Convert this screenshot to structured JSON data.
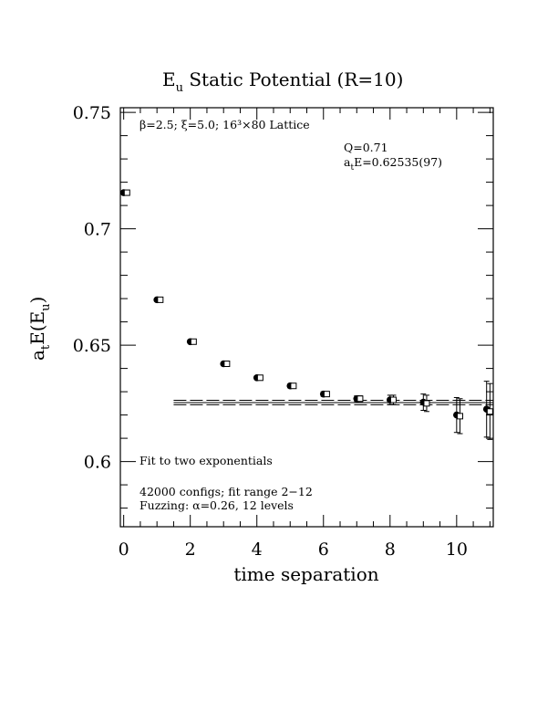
{
  "chart_data": {
    "type": "scatter",
    "title": {
      "main": "E",
      "sub": "u",
      "rest": " Static Potential (R=10)"
    },
    "xlabel": "time separation",
    "ylabel": {
      "a": "a",
      "a_sub": "t",
      "mid": "E(E",
      "mid_sub": "u",
      "end": ")"
    },
    "xlim": [
      -0.1,
      11.1
    ],
    "ylim": [
      0.572,
      0.752
    ],
    "x_ticks": [
      0,
      2,
      4,
      6,
      8,
      10
    ],
    "x_tick_labels": [
      "0",
      "2",
      "4",
      "6",
      "8",
      "10"
    ],
    "y_ticks": [
      0.6,
      0.65,
      0.7,
      0.75
    ],
    "y_tick_labels": [
      "0.6",
      "0.65",
      "0.7",
      "0.75"
    ],
    "grid": false,
    "series": [
      {
        "marker": "filled-circle",
        "points": [
          {
            "x": 0,
            "y": 0.7155,
            "err": 0.0005
          },
          {
            "x": 1,
            "y": 0.6695,
            "err": 0.0005
          },
          {
            "x": 2,
            "y": 0.6515,
            "err": 0.0006
          },
          {
            "x": 3,
            "y": 0.642,
            "err": 0.0006
          },
          {
            "x": 4,
            "y": 0.636,
            "err": 0.0007
          },
          {
            "x": 5,
            "y": 0.6325,
            "err": 0.0008
          },
          {
            "x": 6,
            "y": 0.629,
            "err": 0.001
          },
          {
            "x": 7,
            "y": 0.627,
            "err": 0.0012
          },
          {
            "x": 8,
            "y": 0.6265,
            "err": 0.002
          },
          {
            "x": 9,
            "y": 0.6255,
            "err": 0.0035
          },
          {
            "x": 10,
            "y": 0.62,
            "err": 0.0075
          },
          {
            "x": 10.9,
            "y": 0.6225,
            "err": 0.012
          }
        ]
      },
      {
        "marker": "open-square",
        "points": [
          {
            "x": 0.1,
            "y": 0.7155,
            "err": 0.0005
          },
          {
            "x": 1.1,
            "y": 0.6695,
            "err": 0.0005
          },
          {
            "x": 2.1,
            "y": 0.6515,
            "err": 0.0006
          },
          {
            "x": 3.1,
            "y": 0.642,
            "err": 0.0006
          },
          {
            "x": 4.1,
            "y": 0.636,
            "err": 0.0007
          },
          {
            "x": 5.1,
            "y": 0.6325,
            "err": 0.0008
          },
          {
            "x": 6.1,
            "y": 0.629,
            "err": 0.001
          },
          {
            "x": 7.1,
            "y": 0.627,
            "err": 0.0012
          },
          {
            "x": 8.1,
            "y": 0.6265,
            "err": 0.002
          },
          {
            "x": 9.1,
            "y": 0.625,
            "err": 0.0035
          },
          {
            "x": 10.1,
            "y": 0.6195,
            "err": 0.0075
          },
          {
            "x": 11.0,
            "y": 0.6215,
            "err": 0.012
          }
        ]
      }
    ],
    "fit": {
      "x_range": [
        1.5,
        11.1
      ],
      "center": 0.62535,
      "err": 0.00097
    },
    "annotations": {
      "lattice": "β=2.5; ξ=5.0; 16³×80 Lattice",
      "q": "Q=0.71",
      "energy": {
        "a": "a",
        "sub": "t",
        "rest": "E=0.62535(97)"
      },
      "fit_label": "Fit to two exponentials",
      "configs": "42000 configs; fit range 2−12",
      "fuzzing": "Fuzzing: α=0.26, 12 levels"
    }
  }
}
